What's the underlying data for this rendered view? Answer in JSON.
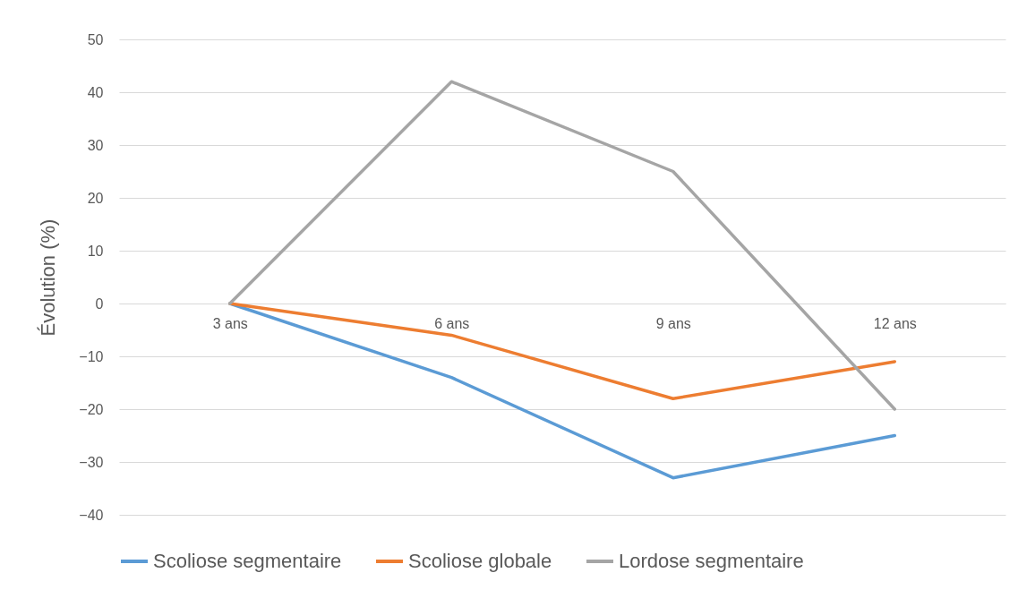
{
  "chart_data": {
    "type": "line",
    "ylabel": "Évolution (%)",
    "categories": [
      "3 ans",
      "6 ans",
      "9 ans",
      "12 ans"
    ],
    "series": [
      {
        "name": "Scoliose segmentaire",
        "color": "#5b9bd5",
        "values": [
          0,
          -14,
          -33,
          -25
        ]
      },
      {
        "name": "Scoliose globale",
        "color": "#ed7d31",
        "values": [
          0,
          -6,
          -18,
          -11
        ]
      },
      {
        "name": "Lordose segmentaire",
        "color": "#a5a5a5",
        "values": [
          0,
          42,
          25,
          -20
        ]
      }
    ],
    "ylim": [
      -40,
      50
    ],
    "yticks": [
      -40,
      -30,
      -20,
      -10,
      0,
      10,
      20,
      30,
      40,
      50
    ],
    "grid": "y",
    "legend": "bottom",
    "marker": "none",
    "line_style": "solid"
  }
}
